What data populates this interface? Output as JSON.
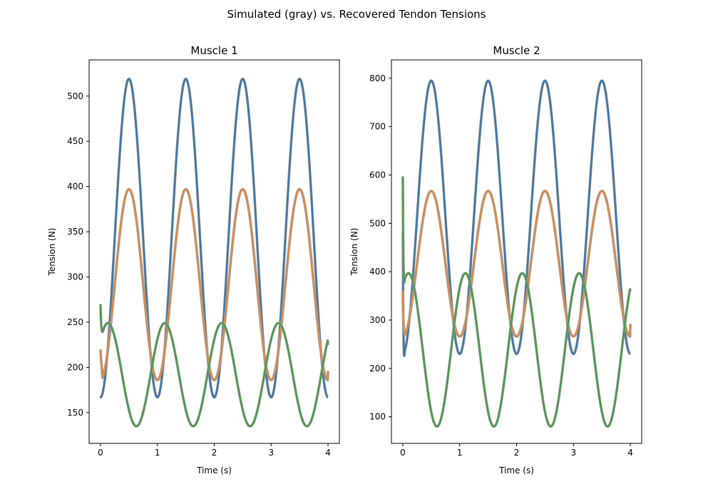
{
  "figure": {
    "title": "Simulated (gray) vs. Recovered Tendon Tensions"
  },
  "chart_data": [
    {
      "type": "line",
      "title": "Muscle 1",
      "xlabel": "Time (s)",
      "ylabel": "Tension (N)",
      "xlim": [
        -0.2,
        4.2
      ],
      "ylim": [
        116,
        540
      ],
      "xticks": [
        0,
        1,
        2,
        3,
        4
      ],
      "yticks": [
        150,
        200,
        250,
        300,
        350,
        400,
        450,
        500
      ],
      "grid": false,
      "series": [
        {
          "color": "#3a75a8",
          "period": 1,
          "peak_x": 0.5,
          "min": 167,
          "max": 519,
          "start_y": 168,
          "end_y": 167
        },
        {
          "color": "#dd8a48",
          "period": 1,
          "peak_x": 0.5,
          "min": 186,
          "max": 397,
          "start_y": 220,
          "end_y": 196,
          "start_dip": 207
        },
        {
          "color": "#4a9a4a",
          "period": 1,
          "peak_x": 0.13,
          "min": 135,
          "max": 249,
          "start_y": 270,
          "end_y": 225,
          "start_dip": 243
        }
      ]
    },
    {
      "type": "line",
      "title": "Muscle 2",
      "xlabel": "Time (s)",
      "ylabel": "Tension (N)",
      "xlim": [
        -0.2,
        4.2
      ],
      "ylim": [
        45,
        838
      ],
      "xticks": [
        0,
        1,
        2,
        3,
        4
      ],
      "yticks": [
        100,
        200,
        300,
        400,
        500,
        600,
        700,
        800
      ],
      "grid": false,
      "series": [
        {
          "color": "#3a75a8",
          "period": 1,
          "peak_x": 0.5,
          "min": 230,
          "max": 795,
          "start_y": 485,
          "end_y": 230,
          "start_dip": 202
        },
        {
          "color": "#dd8a48",
          "period": 1,
          "peak_x": 0.5,
          "min": 266,
          "max": 567,
          "start_y": 360,
          "end_y": 292,
          "start_dip": 278
        },
        {
          "color": "#4a9a4a",
          "period": 1,
          "peak_x": 0.1,
          "min": 80,
          "max": 397,
          "start_y": 597,
          "end_y": 360,
          "start_dip": 362
        }
      ]
    }
  ]
}
